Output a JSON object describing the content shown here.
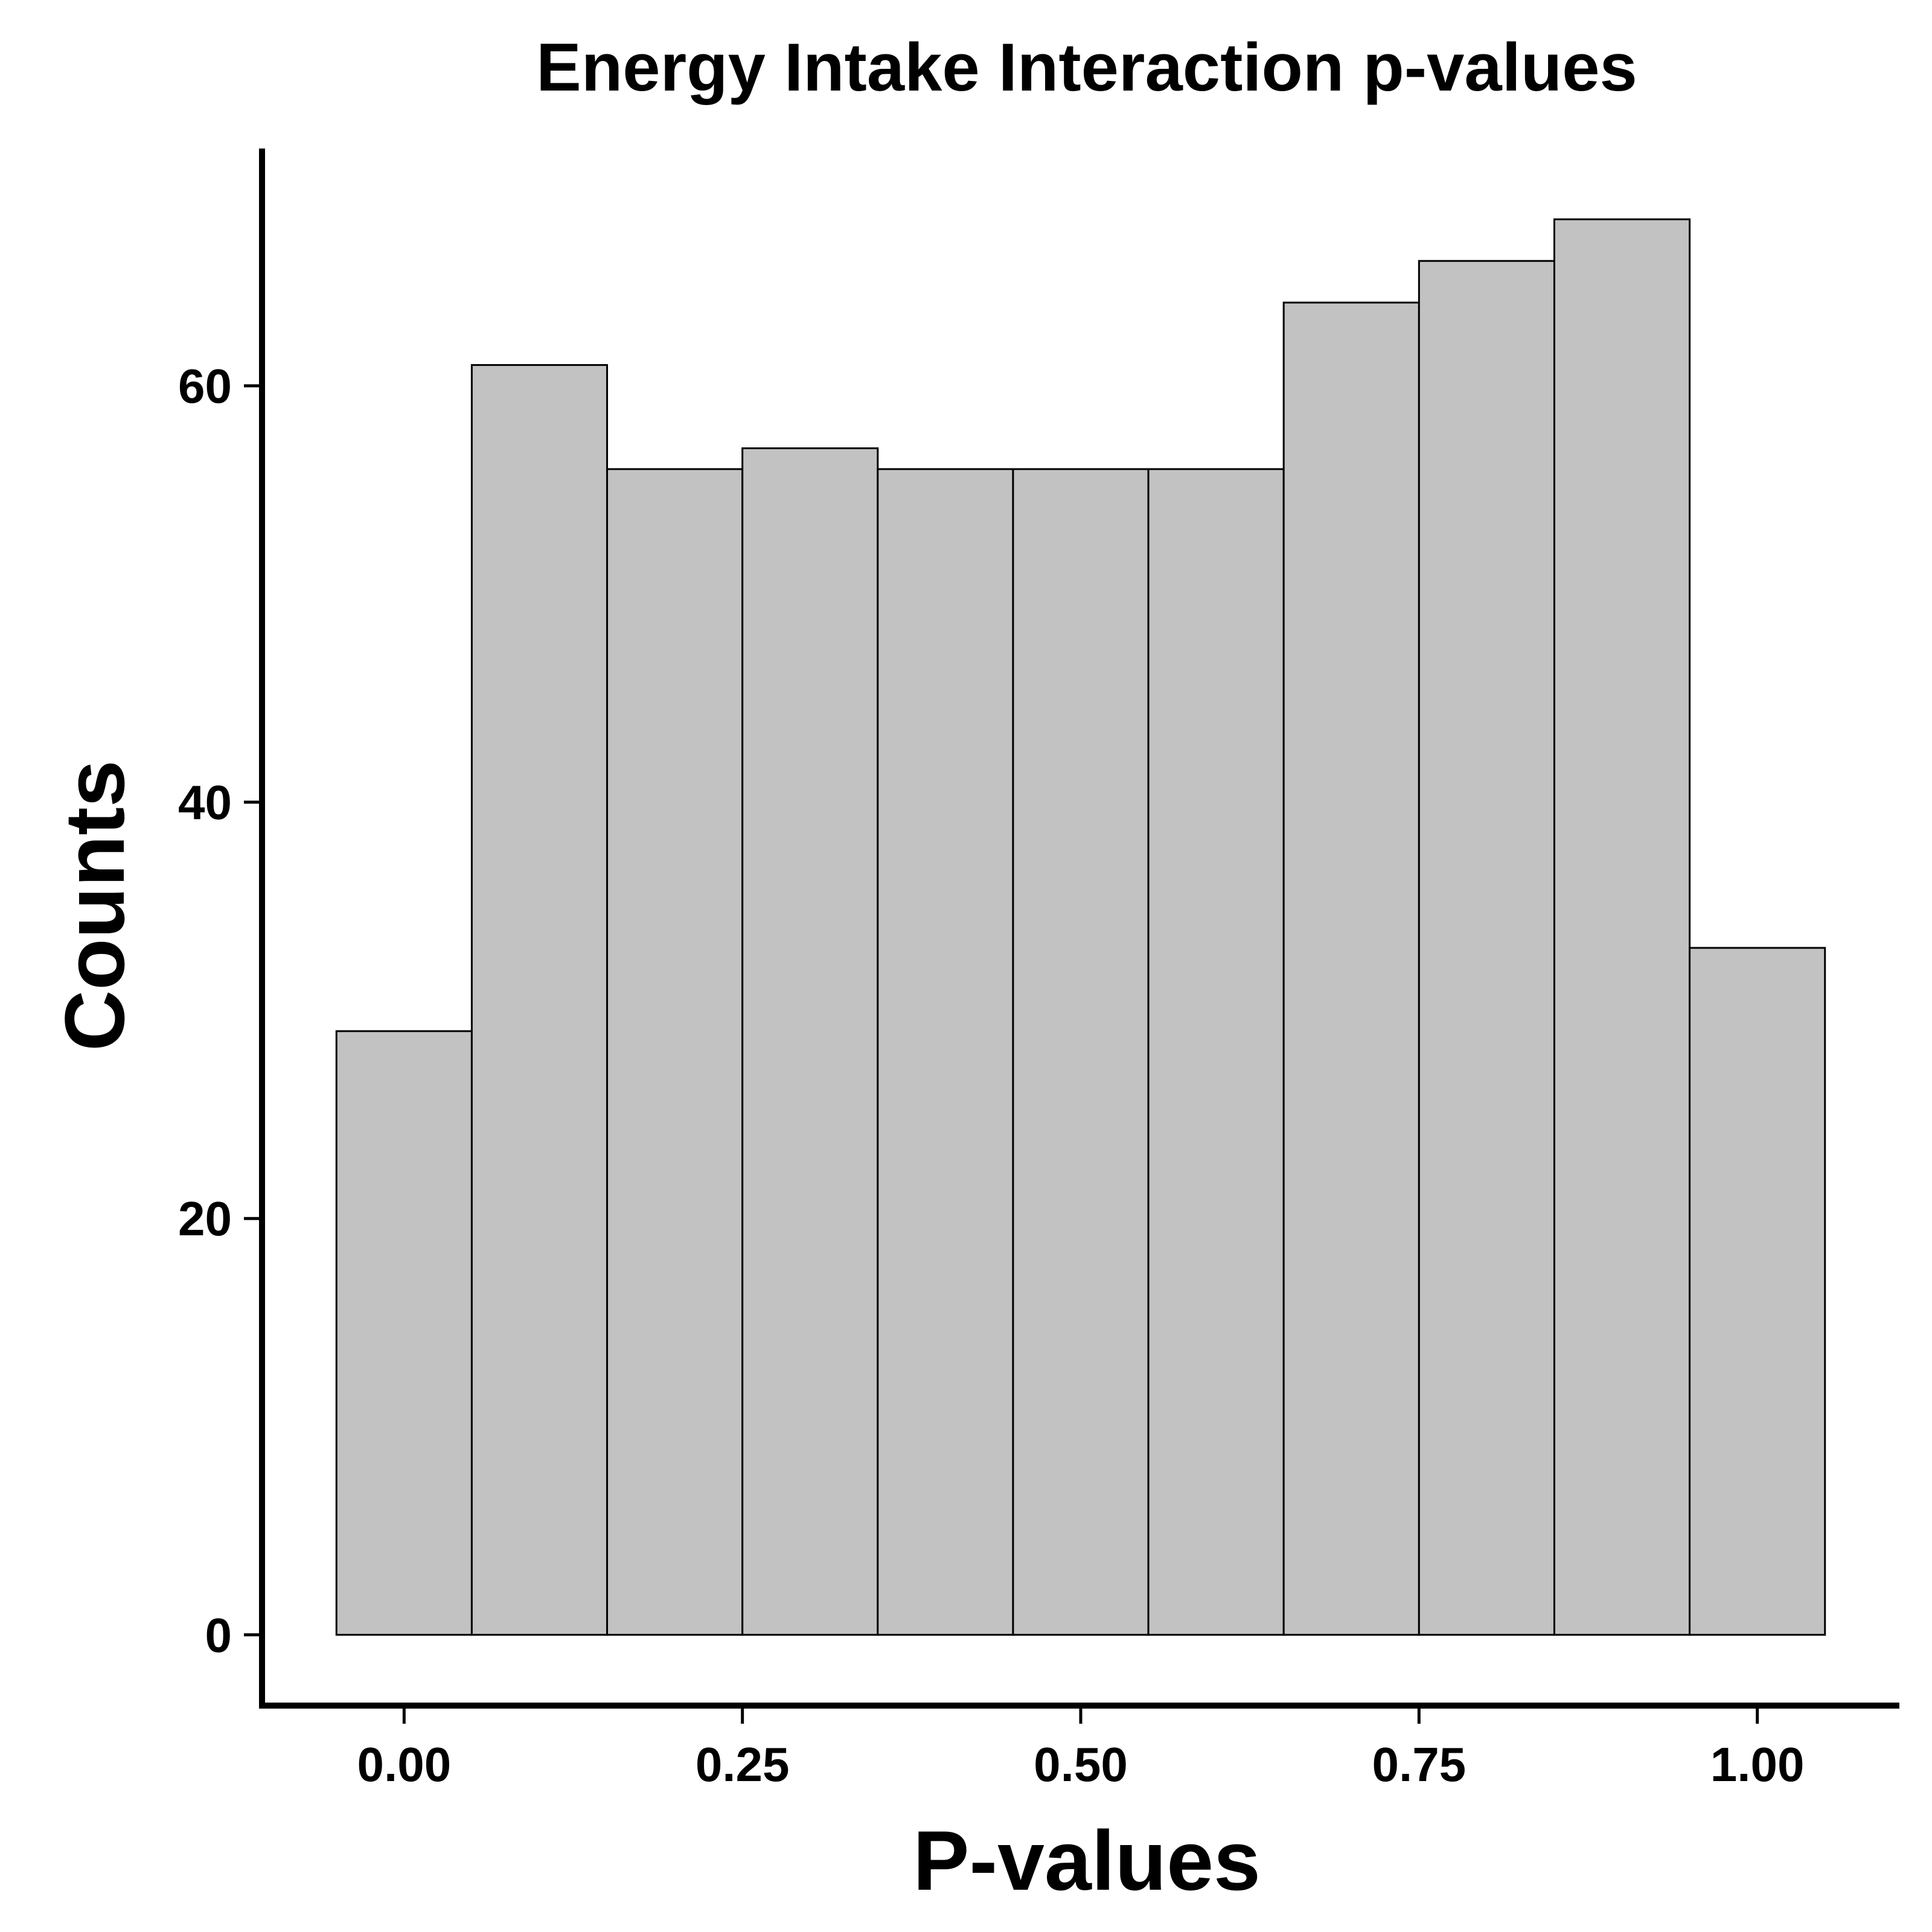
{
  "chart_data": {
    "type": "bar",
    "title": "Energy Intake Interaction p-values",
    "xlabel": "P-values",
    "ylabel": "Counts",
    "bin_width": 0.1,
    "bin_centers": [
      0.0,
      0.1,
      0.2,
      0.3,
      0.4,
      0.5,
      0.6,
      0.7,
      0.8,
      0.9,
      1.0
    ],
    "values": [
      29,
      61,
      56,
      57,
      56,
      56,
      56,
      64,
      66,
      68,
      33
    ],
    "xlim": [
      -0.105,
      1.105
    ],
    "ylim": [
      -3.4,
      71.4
    ],
    "x_ticks": [
      0.0,
      0.25,
      0.5,
      0.75,
      1.0
    ],
    "x_tick_labels": [
      "0.00",
      "0.25",
      "0.50",
      "0.75",
      "1.00"
    ],
    "y_ticks": [
      0,
      20,
      40,
      60
    ],
    "y_tick_labels": [
      "0",
      "20",
      "40",
      "60"
    ],
    "grid": false,
    "bar_color": "#c2c2c2",
    "edge_color": "#000000"
  }
}
